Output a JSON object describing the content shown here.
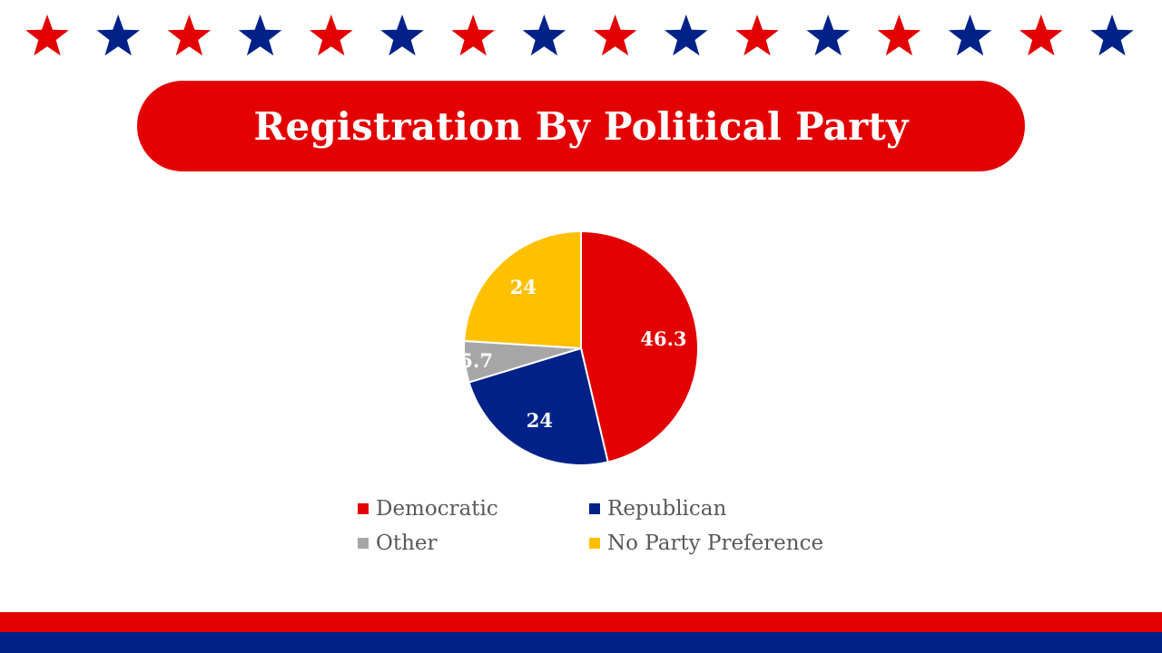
{
  "title": "Registration By Political Party",
  "colors": {
    "red": "#e30000",
    "blue": "#002288",
    "gray": "#a6a6a6",
    "yellow": "#ffc000",
    "legend_text": "#595959"
  },
  "decorations": {
    "star_count": 16,
    "star_pattern": [
      "red",
      "blue"
    ],
    "star_icon": "star-icon"
  },
  "chart_data": {
    "type": "pie",
    "categories": [
      "Democratic",
      "Republican",
      "Other",
      "No Party Preference"
    ],
    "values": [
      46.3,
      24,
      5.7,
      24
    ],
    "data_labels": [
      "46.3",
      "24",
      "5.7",
      "24"
    ],
    "colors": [
      "#e30000",
      "#002288",
      "#a6a6a6",
      "#ffc000"
    ],
    "start_angle_deg": 0,
    "direction": "clockwise",
    "legend_position": "bottom",
    "title": "",
    "xlabel": "",
    "ylabel": ""
  },
  "legend": {
    "items": [
      {
        "label": "Democratic",
        "color": "#e30000"
      },
      {
        "label": "Republican",
        "color": "#002288"
      },
      {
        "label": "Other",
        "color": "#a6a6a6"
      },
      {
        "label": "No Party Preference",
        "color": "#ffc000"
      }
    ]
  }
}
